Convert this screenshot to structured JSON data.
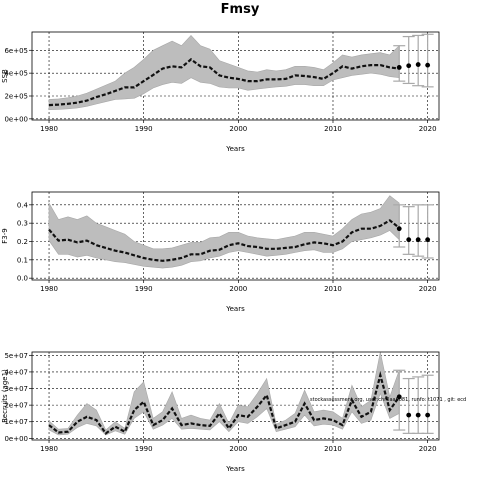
{
  "figure": {
    "title": "Fmsy",
    "source_note": "stockassessment.org, user:chr0aa0081, runfo: t1071 , git: ecd"
  },
  "colors": {
    "band": "#bdbdbd",
    "line": "#111111",
    "projection_interval": "#a9a9a9",
    "projection_point": "#000000"
  },
  "chart_data": [
    {
      "type": "area",
      "name": "panel-ssb",
      "ylabel": "SSB",
      "xlabel": "Years",
      "xlim": [
        1978.2,
        2021.2
      ],
      "ylim": [
        -10000,
        760000
      ],
      "xticks": [
        1980,
        1990,
        2000,
        2010,
        2020
      ],
      "yticks": [
        0,
        200000,
        400000,
        600000
      ],
      "ytick_labels": [
        "0e+00",
        "2e+05",
        "4e+05",
        "6e+05"
      ],
      "grid": true,
      "x": [
        1980,
        1981,
        1982,
        1983,
        1984,
        1985,
        1986,
        1987,
        1988,
        1989,
        1990,
        1991,
        1992,
        1993,
        1994,
        1995,
        1996,
        1997,
        1998,
        1999,
        2000,
        2001,
        2002,
        2003,
        2004,
        2005,
        2006,
        2007,
        2008,
        2009,
        2010,
        2011,
        2012,
        2013,
        2014,
        2015,
        2016,
        2017
      ],
      "estimate": [
        120000,
        125000,
        132000,
        142000,
        160000,
        190000,
        215000,
        245000,
        275000,
        275000,
        330000,
        385000,
        440000,
        460000,
        450000,
        520000,
        460000,
        450000,
        380000,
        360000,
        350000,
        330000,
        330000,
        345000,
        345000,
        350000,
        380000,
        375000,
        365000,
        350000,
        400000,
        460000,
        440000,
        460000,
        470000,
        470000,
        450000,
        440000
      ],
      "lower": [
        80000,
        82000,
        88000,
        95000,
        110000,
        130000,
        150000,
        170000,
        175000,
        180000,
        220000,
        270000,
        300000,
        320000,
        310000,
        360000,
        320000,
        310000,
        280000,
        270000,
        270000,
        250000,
        260000,
        270000,
        280000,
        285000,
        300000,
        300000,
        290000,
        290000,
        340000,
        360000,
        380000,
        390000,
        400000,
        390000,
        370000,
        360000
      ],
      "upper": [
        170000,
        175000,
        185000,
        200000,
        225000,
        260000,
        295000,
        330000,
        400000,
        450000,
        520000,
        600000,
        640000,
        680000,
        640000,
        730000,
        640000,
        610000,
        510000,
        480000,
        450000,
        420000,
        410000,
        430000,
        420000,
        430000,
        460000,
        460000,
        450000,
        430000,
        490000,
        560000,
        540000,
        560000,
        570000,
        580000,
        560000,
        640000
      ],
      "projection": {
        "x": [
          2017,
          2018,
          2019,
          2020
        ],
        "estimate": [
          450000,
          465000,
          475000,
          470000
        ],
        "lower": [
          330000,
          310000,
          290000,
          280000
        ],
        "upper": [
          640000,
          720000,
          730000,
          740000
        ]
      }
    },
    {
      "type": "area",
      "name": "panel-f",
      "ylabel": "F3-9",
      "xlabel": "Years",
      "xlim": [
        1978.2,
        2021.2
      ],
      "ylim": [
        -0.01,
        0.47
      ],
      "xticks": [
        1980,
        1990,
        2000,
        2010,
        2020
      ],
      "yticks": [
        0.0,
        0.1,
        0.2,
        0.3,
        0.4
      ],
      "ytick_labels": [
        "0.0",
        "0.1",
        "0.2",
        "0.3",
        "0.4"
      ],
      "grid": true,
      "x": [
        1980,
        1981,
        1982,
        1983,
        1984,
        1985,
        1986,
        1987,
        1988,
        1989,
        1990,
        1991,
        1992,
        1993,
        1994,
        1995,
        1996,
        1997,
        1998,
        1999,
        2000,
        2001,
        2002,
        2003,
        2004,
        2005,
        2006,
        2007,
        2008,
        2009,
        2010,
        2011,
        2012,
        2013,
        2014,
        2015,
        2016,
        2017
      ],
      "estimate": [
        0.265,
        0.205,
        0.21,
        0.195,
        0.205,
        0.18,
        0.165,
        0.15,
        0.14,
        0.125,
        0.11,
        0.1,
        0.095,
        0.1,
        0.11,
        0.13,
        0.13,
        0.15,
        0.155,
        0.18,
        0.19,
        0.175,
        0.17,
        0.16,
        0.16,
        0.165,
        0.17,
        0.185,
        0.195,
        0.19,
        0.18,
        0.2,
        0.25,
        0.27,
        0.27,
        0.285,
        0.315,
        0.275
      ],
      "lower": [
        0.205,
        0.13,
        0.13,
        0.115,
        0.125,
        0.11,
        0.1,
        0.09,
        0.085,
        0.075,
        0.065,
        0.06,
        0.055,
        0.06,
        0.07,
        0.09,
        0.095,
        0.11,
        0.12,
        0.14,
        0.15,
        0.14,
        0.13,
        0.12,
        0.125,
        0.13,
        0.14,
        0.15,
        0.155,
        0.14,
        0.14,
        0.16,
        0.2,
        0.21,
        0.22,
        0.235,
        0.26,
        0.21
      ],
      "upper": [
        0.41,
        0.32,
        0.335,
        0.32,
        0.34,
        0.3,
        0.28,
        0.26,
        0.24,
        0.2,
        0.18,
        0.16,
        0.16,
        0.165,
        0.18,
        0.195,
        0.195,
        0.22,
        0.225,
        0.25,
        0.25,
        0.23,
        0.22,
        0.215,
        0.21,
        0.22,
        0.23,
        0.25,
        0.25,
        0.24,
        0.23,
        0.27,
        0.32,
        0.35,
        0.36,
        0.38,
        0.45,
        0.41
      ],
      "projection": {
        "x": [
          2017,
          2018,
          2019,
          2020
        ],
        "estimate": [
          0.27,
          0.21,
          0.21,
          0.21
        ],
        "lower": [
          0.17,
          0.13,
          0.12,
          0.11
        ],
        "upper": [
          0.4,
          0.39,
          0.4,
          0.4
        ]
      }
    },
    {
      "type": "area",
      "name": "panel-recruits",
      "ylabel": "Recruits (age1)",
      "xlabel": "Years",
      "xlim": [
        1978.2,
        2021.2
      ],
      "ylim": [
        -1000000,
        52000000
      ],
      "xticks": [
        1980,
        1990,
        2000,
        2010,
        2020
      ],
      "yticks": [
        0,
        10000000,
        20000000,
        30000000,
        40000000,
        50000000
      ],
      "ytick_labels": [
        "0e+00",
        "1e+07",
        "2e+07",
        "3e+07",
        "4e+07",
        "5e+07"
      ],
      "grid": true,
      "x": [
        1980,
        1981,
        1982,
        1983,
        1984,
        1985,
        1986,
        1987,
        1988,
        1989,
        1990,
        1991,
        1992,
        1993,
        1994,
        1995,
        1996,
        1997,
        1998,
        1999,
        2000,
        2001,
        2002,
        2003,
        2004,
        2005,
        2006,
        2007,
        2008,
        2009,
        2010,
        2011,
        2012,
        2013,
        2014,
        2015,
        2016,
        2017
      ],
      "estimate": [
        8000000,
        3500000,
        4000000,
        10000000,
        13000000,
        11000000,
        3000000,
        7000000,
        4000000,
        17000000,
        22000000,
        8000000,
        11000000,
        18000000,
        8000000,
        9000000,
        8000000,
        7500000,
        15000000,
        6000000,
        14000000,
        13000000,
        19000000,
        26000000,
        6000000,
        8000000,
        10000000,
        21000000,
        11000000,
        12000000,
        11000000,
        8000000,
        23000000,
        13000000,
        16000000,
        38000000,
        17000000,
        25000000
      ],
      "lower": [
        5000000,
        2000000,
        2500000,
        6500000,
        9000000,
        7500000,
        2000000,
        4500000,
        2500000,
        12000000,
        16000000,
        5500000,
        8000000,
        12000000,
        5500000,
        6000000,
        5500000,
        5000000,
        10000000,
        4000000,
        10000000,
        9000000,
        13000000,
        18000000,
        4000000,
        5500000,
        7000000,
        14000000,
        7500000,
        8500000,
        8000000,
        5500000,
        16000000,
        9000000,
        11000000,
        27000000,
        12000000,
        15000000
      ],
      "upper": [
        10500000,
        5500000,
        6000000,
        14000000,
        21000000,
        17000000,
        5000000,
        10000000,
        6000000,
        28000000,
        34000000,
        12000000,
        16000000,
        28000000,
        12000000,
        14000000,
        12000000,
        11000000,
        21000000,
        9000000,
        20000000,
        19000000,
        27000000,
        36000000,
        8500000,
        11000000,
        15000000,
        29000000,
        16000000,
        17000000,
        16000000,
        12000000,
        32000000,
        19000000,
        23000000,
        52000000,
        25000000,
        41000000
      ],
      "projection": {
        "x": [
          2017,
          2018,
          2019,
          2020
        ],
        "estimate": [
          25000000,
          14000000,
          14000000,
          14000000
        ],
        "lower": [
          5000000,
          3000000,
          3000000,
          3000000
        ],
        "upper": [
          41000000,
          36000000,
          37000000,
          38000000
        ]
      }
    }
  ]
}
